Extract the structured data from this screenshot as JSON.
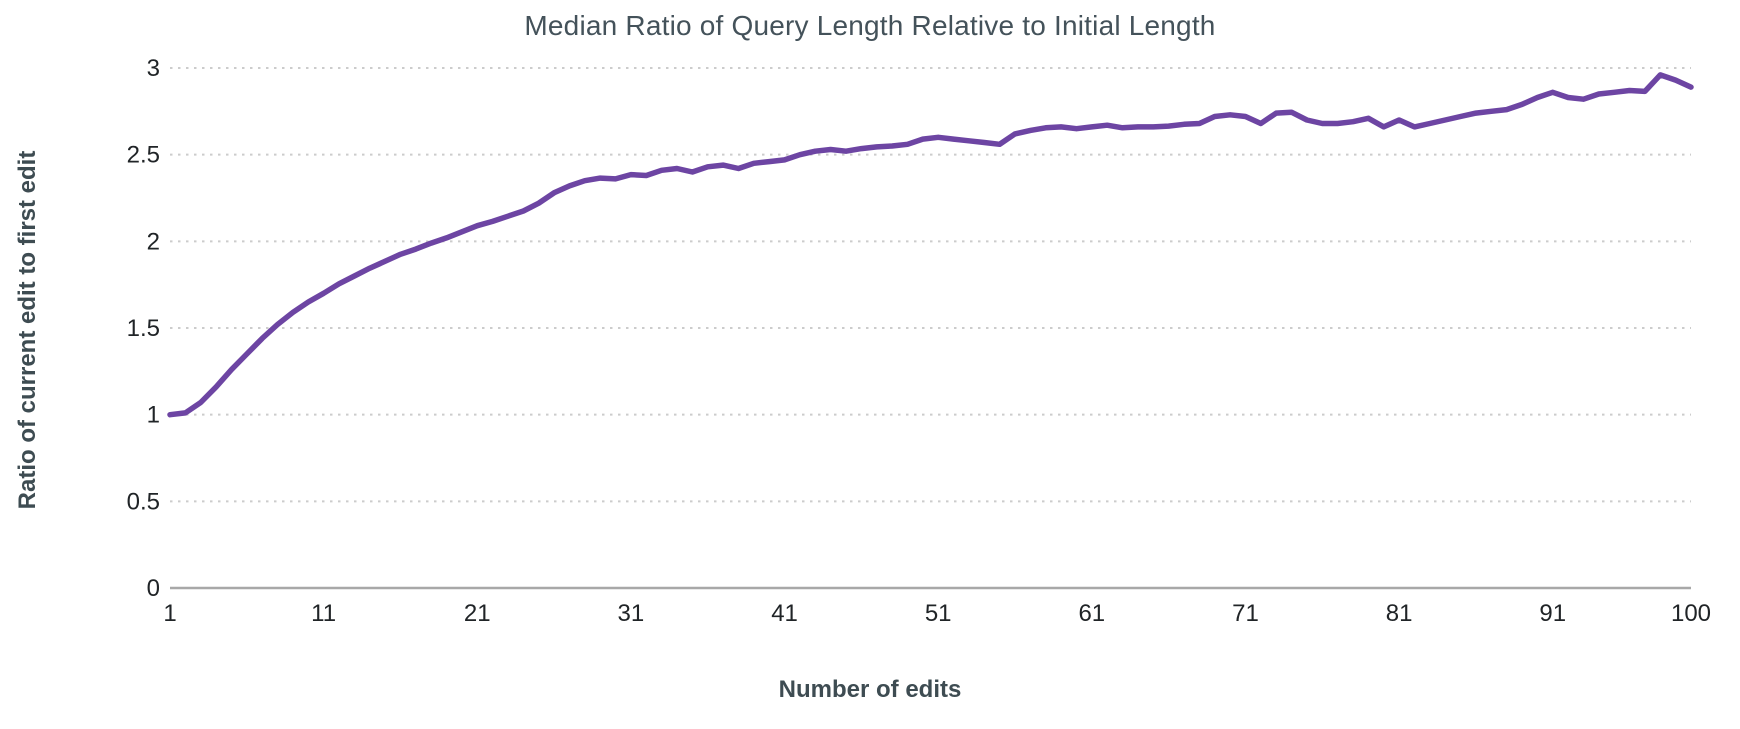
{
  "chart_data": {
    "type": "line",
    "title": "Median Ratio of Query Length Relative to Initial Length",
    "xlabel": "Number of edits",
    "ylabel": "Ratio of current edit to first edit",
    "x": [
      1,
      2,
      3,
      4,
      5,
      6,
      7,
      8,
      9,
      10,
      11,
      12,
      13,
      14,
      15,
      16,
      17,
      18,
      19,
      20,
      21,
      22,
      23,
      24,
      25,
      26,
      27,
      28,
      29,
      30,
      31,
      32,
      33,
      34,
      35,
      36,
      37,
      38,
      39,
      40,
      41,
      42,
      43,
      44,
      45,
      46,
      47,
      48,
      49,
      50,
      51,
      52,
      53,
      54,
      55,
      56,
      57,
      58,
      59,
      60,
      61,
      62,
      63,
      64,
      65,
      66,
      67,
      68,
      69,
      70,
      71,
      72,
      73,
      74,
      75,
      76,
      77,
      78,
      79,
      80,
      81,
      82,
      83,
      84,
      85,
      86,
      87,
      88,
      89,
      90,
      91,
      92,
      93,
      94,
      95,
      96,
      97,
      98,
      99,
      100
    ],
    "values": [
      1.0,
      1.01,
      1.07,
      1.16,
      1.26,
      1.35,
      1.44,
      1.52,
      1.59,
      1.65,
      1.7,
      1.755,
      1.8,
      1.845,
      1.885,
      1.925,
      1.955,
      1.99,
      2.02,
      2.055,
      2.09,
      2.115,
      2.145,
      2.175,
      2.22,
      2.28,
      2.32,
      2.35,
      2.365,
      2.36,
      2.385,
      2.38,
      2.41,
      2.42,
      2.4,
      2.43,
      2.44,
      2.42,
      2.45,
      2.46,
      2.47,
      2.5,
      2.52,
      2.53,
      2.52,
      2.535,
      2.545,
      2.55,
      2.56,
      2.59,
      2.6,
      2.59,
      2.58,
      2.57,
      2.56,
      2.62,
      2.64,
      2.655,
      2.66,
      2.65,
      2.66,
      2.67,
      2.655,
      2.66,
      2.66,
      2.665,
      2.675,
      2.68,
      2.72,
      2.73,
      2.72,
      2.68,
      2.74,
      2.745,
      2.7,
      2.68,
      2.68,
      2.69,
      2.71,
      2.66,
      2.7,
      2.66,
      2.68,
      2.7,
      2.72,
      2.74,
      2.75,
      2.76,
      2.79,
      2.83,
      2.86,
      2.83,
      2.82,
      2.85,
      2.86,
      2.87,
      2.865,
      2.96,
      2.93,
      2.89
    ],
    "x_ticks": [
      1,
      11,
      21,
      31,
      41,
      51,
      61,
      71,
      81,
      91,
      100
    ],
    "y_ticks": [
      0,
      0.5,
      1,
      1.5,
      2,
      2.5,
      3
    ],
    "xlim": [
      1,
      100
    ],
    "ylim": [
      0,
      3
    ],
    "grid": "horizontal-dotted",
    "legend_position": "none",
    "line_color": "#6d45a3",
    "grid_color": "#cccccc",
    "axis_line_color": "#a8a8a8",
    "title_color": "#44525a",
    "axis_label_color": "#3e4c52",
    "tick_label_color": "#202427"
  }
}
